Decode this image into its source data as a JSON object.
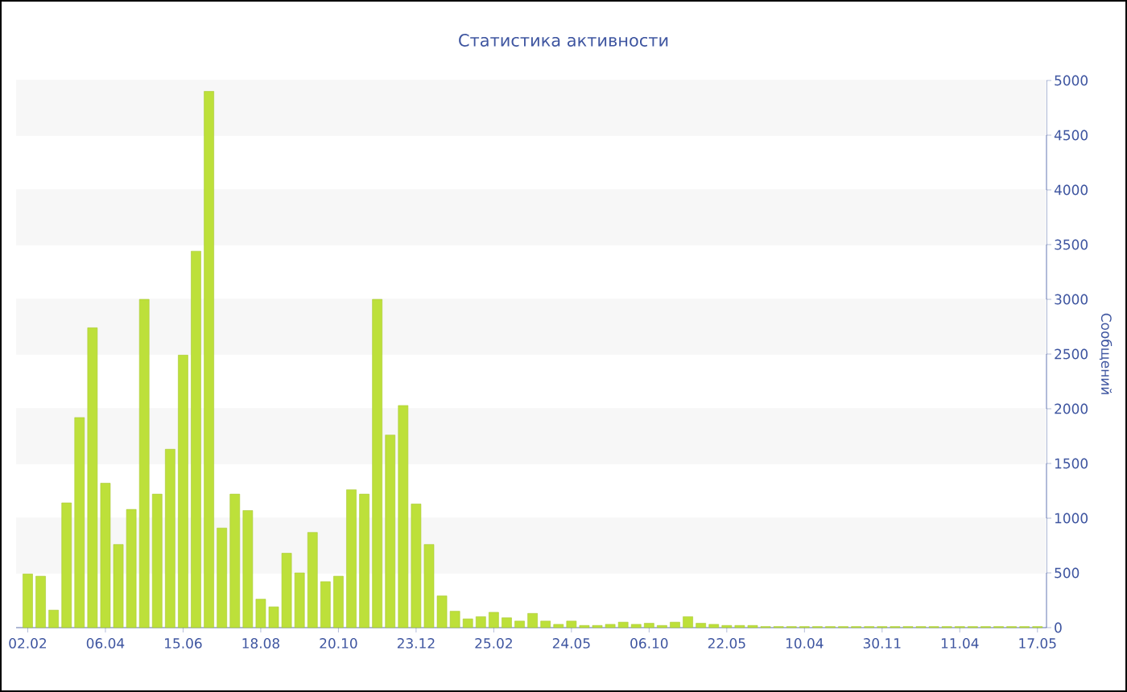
{
  "chart_data": {
    "type": "bar",
    "title": "Статистика активности",
    "ylabel": "Сообщений",
    "categories": [
      "02.02",
      null,
      null,
      null,
      null,
      null,
      "06.04",
      null,
      null,
      null,
      null,
      null,
      "15.06",
      null,
      null,
      null,
      null,
      null,
      "18.08",
      null,
      null,
      null,
      null,
      null,
      "20.10",
      null,
      null,
      null,
      null,
      null,
      "23.12",
      null,
      null,
      null,
      null,
      null,
      "25.02",
      null,
      null,
      null,
      null,
      null,
      "24.05",
      null,
      null,
      null,
      null,
      null,
      "06.10",
      null,
      null,
      null,
      null,
      null,
      "22.05",
      null,
      null,
      null,
      null,
      null,
      "10.04",
      null,
      null,
      null,
      null,
      null,
      "30.11",
      null,
      null,
      null,
      null,
      null,
      "11.04",
      null,
      null,
      null,
      null,
      null,
      "17.05"
    ],
    "values": [
      490,
      470,
      160,
      1140,
      1920,
      2740,
      1320,
      760,
      1080,
      3000,
      1220,
      1630,
      2490,
      3440,
      4900,
      910,
      1220,
      1070,
      260,
      190,
      680,
      500,
      870,
      420,
      470,
      1260,
      1220,
      3000,
      1760,
      2030,
      1130,
      760,
      290,
      150,
      80,
      100,
      140,
      90,
      60,
      130,
      60,
      30,
      60,
      20,
      20,
      30,
      50,
      30,
      40,
      20,
      50,
      100,
      40,
      30,
      20,
      20,
      20,
      10,
      10,
      10,
      10,
      10,
      10,
      10,
      10,
      10,
      10,
      10,
      10,
      10,
      10,
      10,
      10,
      10,
      10,
      10,
      10,
      10,
      10
    ],
    "color": "#bde03a",
    "ylim": [
      0,
      5000
    ],
    "yticks": [
      0,
      500,
      1000,
      1500,
      2000,
      2500,
      3000,
      3500,
      4000,
      4500,
      5000
    ],
    "grid": "y"
  }
}
